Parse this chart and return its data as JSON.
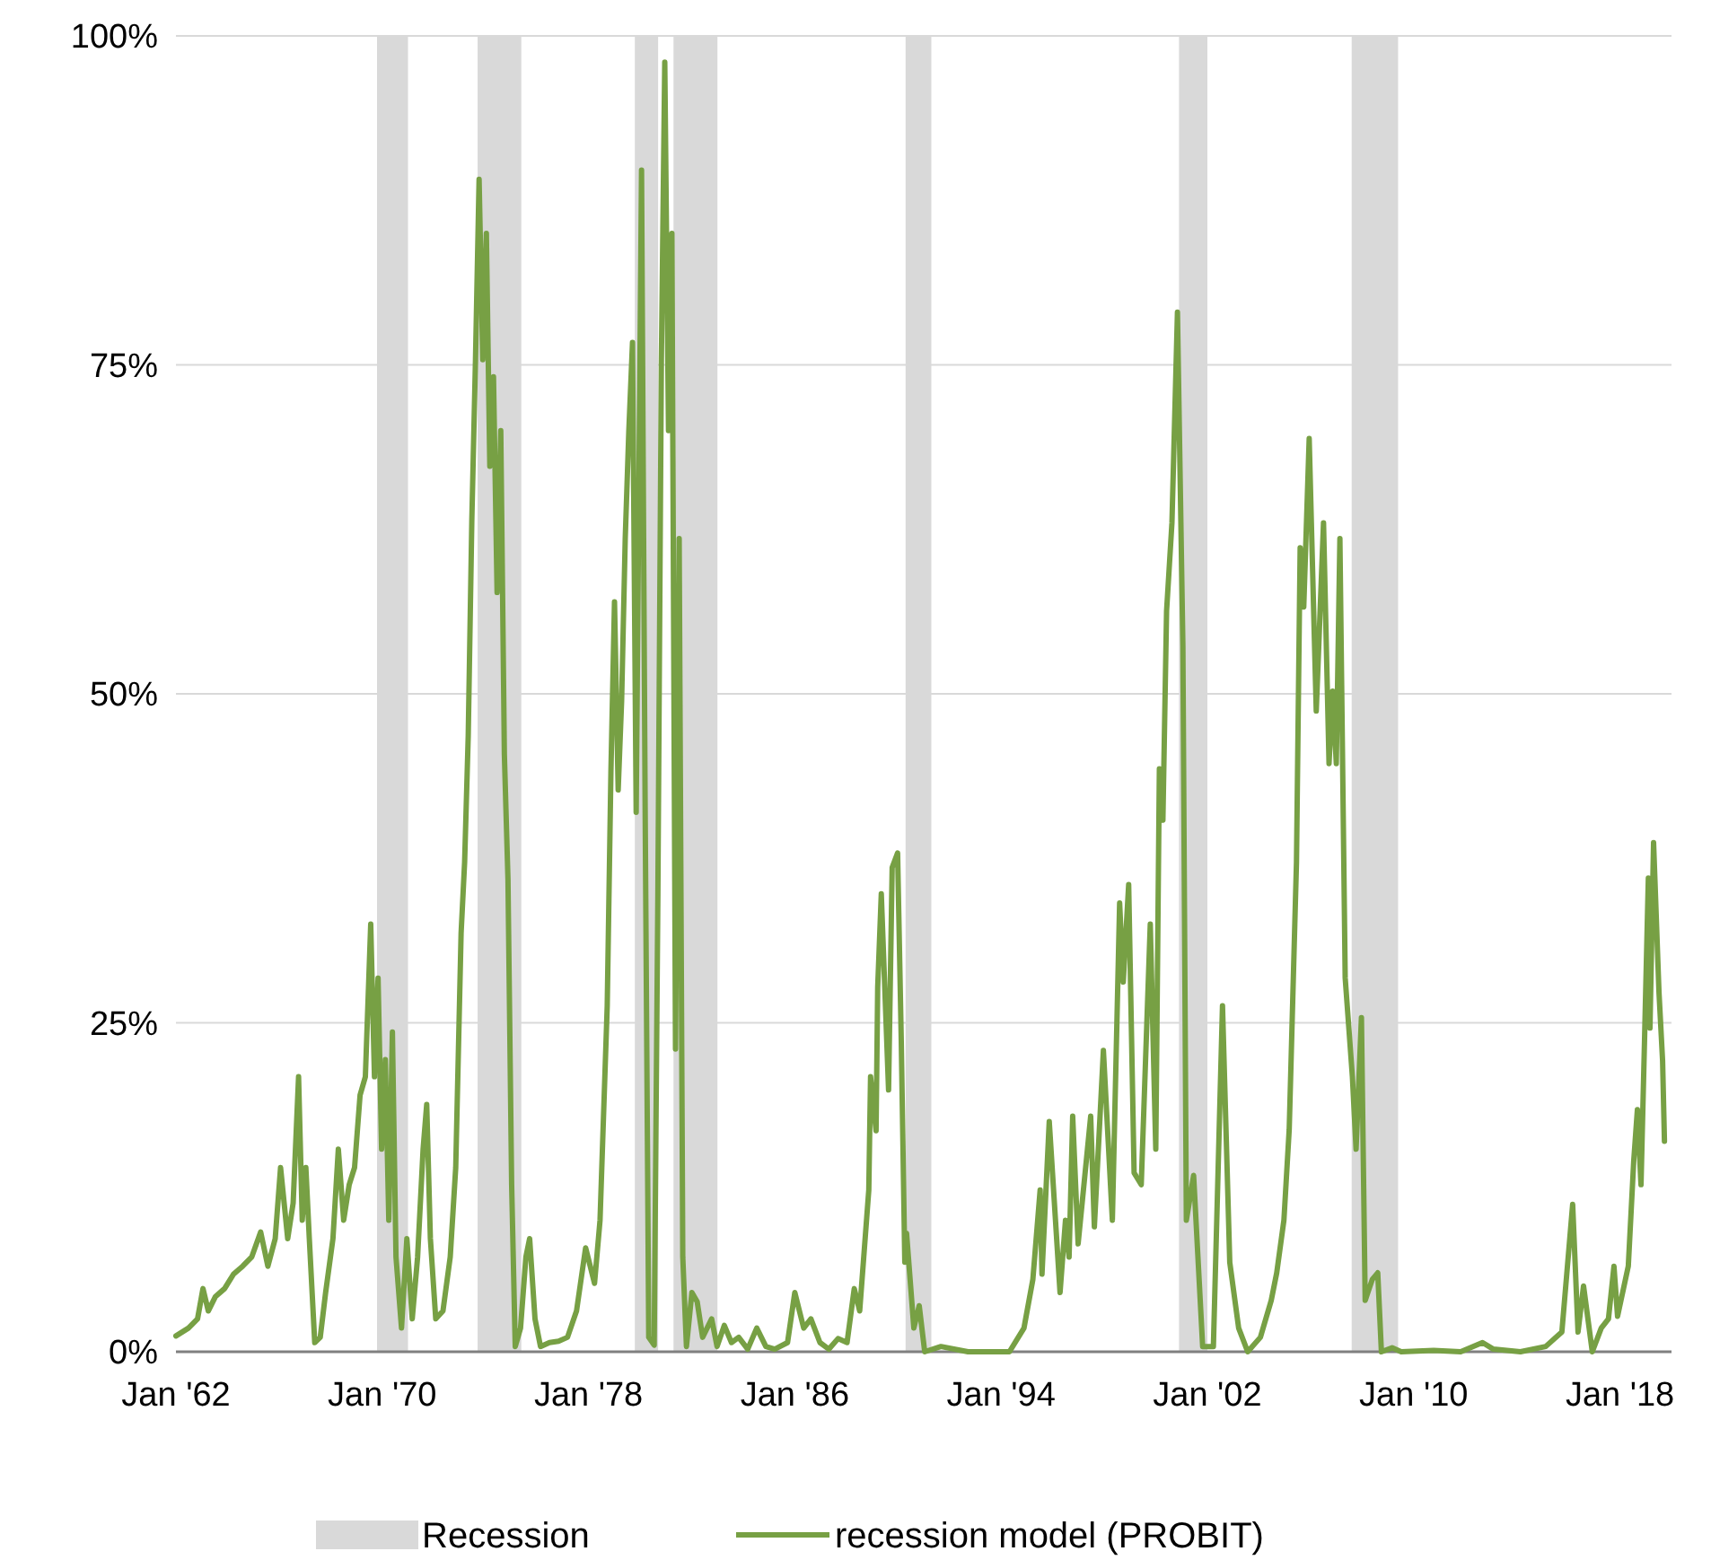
{
  "chart_data": {
    "type": "line",
    "xlim": [
      "1962-01-01",
      "2020-01-01"
    ],
    "ylim": [
      0,
      100
    ],
    "xticks": [
      {
        "value": "1962-01",
        "label": "Jan '62"
      },
      {
        "value": "1970-01",
        "label": "Jan '70"
      },
      {
        "value": "1978-01",
        "label": "Jan '78"
      },
      {
        "value": "1986-01",
        "label": "Jan '86"
      },
      {
        "value": "1994-01",
        "label": "Jan '94"
      },
      {
        "value": "2002-01",
        "label": "Jan '02"
      },
      {
        "value": "2010-01",
        "label": "Jan '10"
      },
      {
        "value": "2018-01",
        "label": "Jan '18"
      }
    ],
    "yticks": [
      {
        "value": 0,
        "label": "0%"
      },
      {
        "value": 25,
        "label": "25%"
      },
      {
        "value": 50,
        "label": "50%"
      },
      {
        "value": 75,
        "label": "75%"
      },
      {
        "value": 100,
        "label": "100%"
      }
    ],
    "grid": "y",
    "legend": "bottom",
    "line_style": "solid",
    "bands": [
      {
        "axis": "x",
        "from": "1969-10-19",
        "to": "1971-01-01",
        "label": "Recession",
        "color": "#d9d9d9"
      },
      {
        "axis": "x",
        "from": "1973-09-13",
        "to": "1975-05-25",
        "color": "#d9d9d9"
      },
      {
        "axis": "x",
        "from": "1979-10-19",
        "to": "1980-09-13",
        "color": "#d9d9d9"
      },
      {
        "axis": "x",
        "from": "1981-04-19",
        "to": "1983-01-01",
        "color": "#d9d9d9"
      },
      {
        "axis": "x",
        "from": "1990-04-19",
        "to": "1991-04-19",
        "color": "#d9d9d9"
      },
      {
        "axis": "x",
        "from": "2000-11-25",
        "to": "2002-01-01",
        "color": "#d9d9d9"
      },
      {
        "axis": "x",
        "from": "2007-08-07",
        "to": "2009-05-25",
        "color": "#d9d9d9"
      }
    ],
    "series": [
      {
        "name": "recession model (PROBIT)",
        "color": "#77a044",
        "x": [
          "1962-01-01",
          "1962-06-27",
          "1962-11-03",
          "1963-01-19",
          "1963-04-04",
          "1963-07-15",
          "1963-11-21",
          "1964-03-27",
          "1964-08-03",
          "1964-12-09",
          "1965-04-15",
          "1965-07-26",
          "1965-11-07",
          "1966-01-22",
          "1966-05-03",
          "1966-07-19",
          "1966-10-04",
          "1966-11-25",
          "1967-01-15",
          "1967-03-05",
          "1967-05-21",
          "1967-08-07",
          "1967-10-22",
          "1968-02-03",
          "1968-04-19",
          "1968-07-04",
          "1968-09-20",
          "1968-12-05",
          "1969-02-21",
          "1969-05-07",
          "1969-07-22",
          "1969-09-13",
          "1969-11-03",
          "1969-12-23",
          "1970-02-14",
          "1970-04-04",
          "1970-05-25",
          "1970-07-15",
          "1970-10-01",
          "1970-12-16",
          "1971-03-02",
          "1971-05-17",
          "1971-08-03",
          "1971-09-23",
          "1971-11-14",
          "1972-01-29",
          "1972-05-10",
          "1972-08-21",
          "1972-11-07",
          "1973-01-22",
          "1973-03-13",
          "1973-05-03",
          "1973-06-23",
          "1973-08-14",
          "1973-10-04",
          "1973-11-25",
          "1974-01-15",
          "1974-03-05",
          "1974-04-26",
          "1974-06-16",
          "1974-08-07",
          "1974-09-27",
          "1974-11-17",
          "1975-01-08",
          "1975-02-28",
          "1975-05-14",
          "1975-07-29",
          "1975-09-20",
          "1975-12-05",
          "1976-02-21",
          "1976-06-27",
          "1976-11-03",
          "1977-03-09",
          "1977-07-15",
          "1977-11-21",
          "1978-03-27",
          "1978-06-13",
          "1978-09-23",
          "1978-11-14",
          "1979-01-04",
          "1979-02-25",
          "1979-04-15",
          "1979-06-05",
          "1979-07-26",
          "1979-09-16",
          "1979-11-07",
          "1980-01-22",
          "1980-03-13",
          "1980-05-03",
          "1980-07-19",
          "1980-09-09",
          "1980-10-29",
          "1980-12-16",
          "1981-02-07",
          "1981-03-27",
          "1981-05-17",
          "1981-07-08",
          "1981-08-28",
          "1981-10-19",
          "1982-01-04",
          "1982-03-20",
          "1982-06-05",
          "1982-10-11",
          "1982-12-27",
          "1983-04-08",
          "1983-07-19",
          "1983-10-29",
          "1984-03-05",
          "1984-07-11",
          "1984-11-17",
          "1985-03-23",
          "1985-09-20",
          "1986-01-01",
          "1986-05-07",
          "1986-08-17",
          "1986-12-23",
          "1987-04-29",
          "1987-09-05",
          "1988-01-11",
          "1988-04-22",
          "1988-07-08",
          "1988-11-14",
          "1988-12-09",
          "1989-02-25",
          "1989-03-20",
          "1989-05-10",
          "1989-08-21",
          "1989-10-11",
          "1989-12-27",
          "1990-02-17",
          "1990-04-08",
          "1990-05-03",
          "1990-08-14",
          "1990-10-29",
          "1991-01-15",
          "1991-09-02",
          "1992-09-20",
          "1993-08-17",
          "1994-04-29",
          "1994-11-21",
          "1995-03-27",
          "1995-07-08",
          "1995-08-03",
          "1995-11-14",
          "1996-04-15",
          "1996-07-01",
          "1996-08-21",
          "1996-10-11",
          "1996-12-27",
          "1997-06-23",
          "1997-08-14",
          "1997-12-20",
          "1998-04-26",
          "1998-08-07",
          "1998-09-27",
          "1998-12-13",
          "1999-02-28",
          "1999-06-09",
          "1999-10-15",
          "2000-01-01",
          "2000-02-21",
          "2000-04-11",
          "2000-06-02",
          "2000-08-17",
          "2000-11-03",
          "2001-01-19",
          "2001-03-09",
          "2001-06-20",
          "2001-10-26",
          "2002-03-27",
          "2002-08-03",
          "2002-11-14",
          "2003-03-20",
          "2003-07-26",
          "2004-01-22",
          "2004-06-23",
          "2004-09-09",
          "2004-12-20",
          "2005-03-05",
          "2005-06-16",
          "2005-08-07",
          "2005-09-27",
          "2005-12-13",
          "2006-03-23",
          "2006-07-04",
          "2006-09-20",
          "2006-11-10",
          "2007-01-01",
          "2007-02-21",
          "2007-05-07",
          "2007-08-17",
          "2007-10-08",
          "2007-12-23",
          "2008-02-14",
          "2008-05-25",
          "2008-08-10",
          "2008-10-01",
          "2009-03-02",
          "2009-07-08",
          "2010-10-11",
          "2011-10-29",
          "2012-09-02",
          "2013-02-03",
          "2014-02-21",
          "2015-02-14",
          "2015-10-01",
          "2016-03-02",
          "2016-05-17",
          "2016-08-03",
          "2016-12-05",
          "2017-04-11",
          "2017-07-22",
          "2017-10-08",
          "2017-11-28",
          "2018-04-29",
          "2018-07-15",
          "2018-09-05",
          "2018-10-26",
          "2018-12-16",
          "2019-02-07",
          "2019-03-02",
          "2019-04-22",
          "2019-07-08",
          "2019-08-28",
          "2019-09-23"
        ],
        "values": [
          1.2,
          1.8,
          2.5,
          4.8,
          3.1,
          4.2,
          4.8,
          5.9,
          6.5,
          7.2,
          9.1,
          6.5,
          8.6,
          14.0,
          8.6,
          11.3,
          20.9,
          10.0,
          14.0,
          8.6,
          0.7,
          1.1,
          4.5,
          8.6,
          15.4,
          10.0,
          12.7,
          14.0,
          19.5,
          20.9,
          32.5,
          20.9,
          28.4,
          15.4,
          22.2,
          10.0,
          24.3,
          7.2,
          1.8,
          8.6,
          2.5,
          7.2,
          15.4,
          18.8,
          8.6,
          2.5,
          3.1,
          7.2,
          14.0,
          31.8,
          37.2,
          46.8,
          63.2,
          75.4,
          89.1,
          75.4,
          85.0,
          67.3,
          74.1,
          57.7,
          70.0,
          45.4,
          35.9,
          12.7,
          0.4,
          1.8,
          7.2,
          8.6,
          2.5,
          0.4,
          0.7,
          0.8,
          1.1,
          3.1,
          7.9,
          5.2,
          10.0,
          26.3,
          44.0,
          57.0,
          42.7,
          49.5,
          61.8,
          70.0,
          76.7,
          41.0,
          89.8,
          41.3,
          1.1,
          0.5,
          34.5,
          75.4,
          98.0,
          70.0,
          85.0,
          23.0,
          61.8,
          7.2,
          0.4,
          4.5,
          3.8,
          1.1,
          2.5,
          0.4,
          2.0,
          0.7,
          1.1,
          0.2,
          1.8,
          0.4,
          0.2,
          0.7,
          4.5,
          1.8,
          2.5,
          0.7,
          0.2,
          1.0,
          0.7,
          4.8,
          3.1,
          12.3,
          20.9,
          16.8,
          27.7,
          34.8,
          19.9,
          36.8,
          37.9,
          23.6,
          6.8,
          9.0,
          1.8,
          3.5,
          0.0,
          0.4,
          0.0,
          0.0,
          0.0,
          1.8,
          5.5,
          12.3,
          5.9,
          17.5,
          4.5,
          10.0,
          7.2,
          17.9,
          8.2,
          17.9,
          9.5,
          22.9,
          10.0,
          34.1,
          28.1,
          35.5,
          13.6,
          12.7,
          32.5,
          15.4,
          44.3,
          40.4,
          56.3,
          63.0,
          79.0,
          53.6,
          10.0,
          13.4,
          0.4,
          0.4,
          26.3,
          6.8,
          1.8,
          0.0,
          1.1,
          3.9,
          6.0,
          10.0,
          16.9,
          37.2,
          61.1,
          56.6,
          69.4,
          48.7,
          63.0,
          44.7,
          50.2,
          44.7,
          61.8,
          28.4,
          20.9,
          15.4,
          25.4,
          3.9,
          5.5,
          6.0,
          0.0,
          0.3,
          0.0,
          0.1,
          0.0,
          0.7,
          0.2,
          0.0,
          0.4,
          1.5,
          11.2,
          1.5,
          5.0,
          0.0,
          1.8,
          2.5,
          6.5,
          2.7,
          6.5,
          14.5,
          18.4,
          12.7,
          23.9,
          36.0,
          24.6,
          38.7,
          27.3,
          22.1,
          16.0
        ]
      }
    ]
  }
}
